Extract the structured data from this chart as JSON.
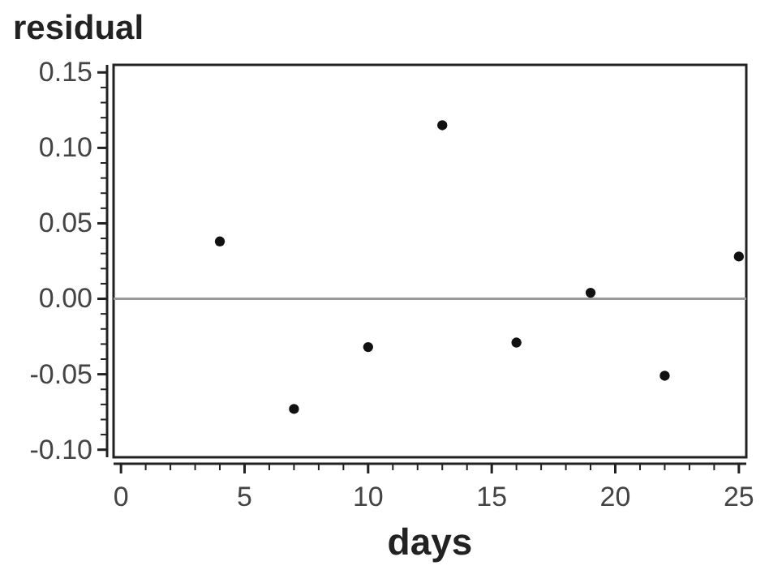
{
  "chart_data": {
    "type": "scatter",
    "ylabel": "residual",
    "xlabel": "days",
    "x": [
      4,
      7,
      10,
      13,
      16,
      19,
      22,
      25
    ],
    "values": [
      0.038,
      -0.073,
      -0.032,
      0.115,
      -0.029,
      0.004,
      -0.051,
      0.028
    ],
    "color": "#111111",
    "marker": "circle",
    "xlim": [
      -0.3,
      25.3
    ],
    "xticks": [
      0,
      5,
      10,
      15,
      20,
      25
    ],
    "ylim": [
      -0.105,
      0.155
    ],
    "yticks": [
      {
        "value": -0.1,
        "label": "-0.10"
      },
      {
        "value": -0.05,
        "label": "-0.05"
      },
      {
        "value": 0,
        "label": "0.00"
      },
      {
        "value": 0.05,
        "label": "0.05"
      },
      {
        "value": 0.1,
        "label": "0.10"
      },
      {
        "value": 0.15,
        "label": "0.15"
      }
    ],
    "ref_lines": [
      {
        "axis": "y",
        "value": 0,
        "color": "#999999"
      }
    ],
    "grid": false
  }
}
